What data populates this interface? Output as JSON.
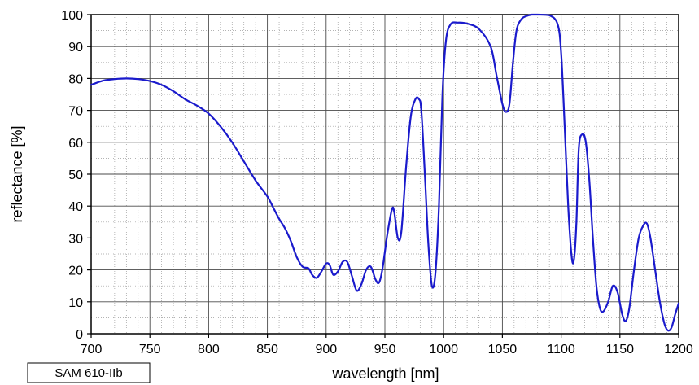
{
  "chart_data": {
    "type": "line",
    "title": "",
    "xlabel": "wavelength [nm]",
    "ylabel": "reflectance [%]",
    "xlim": [
      700,
      1200
    ],
    "ylim": [
      0,
      100
    ],
    "x_ticks": [
      700,
      750,
      800,
      850,
      900,
      950,
      1000,
      1050,
      1100,
      1150,
      1200
    ],
    "y_ticks": [
      0,
      10,
      20,
      30,
      40,
      50,
      60,
      70,
      80,
      90,
      100
    ],
    "grid": true,
    "minor_grid": true,
    "line_color": "#1a1acc",
    "series": [
      {
        "x": [
          700,
          710,
          720,
          730,
          740,
          750,
          760,
          770,
          780,
          790,
          800,
          810,
          820,
          830,
          840,
          850,
          855,
          860,
          865,
          870,
          875,
          880,
          885,
          888,
          892,
          896,
          900,
          903,
          906,
          910,
          914,
          918,
          922,
          926,
          930,
          934,
          938,
          942,
          945,
          948,
          952,
          956,
          958,
          961,
          964,
          968,
          972,
          976,
          979,
          981,
          984,
          987,
          990,
          993,
          996,
          999,
          1002,
          1006,
          1012,
          1020,
          1030,
          1040,
          1045,
          1050,
          1053,
          1056,
          1059,
          1062,
          1066,
          1070,
          1075,
          1080,
          1090,
          1097,
          1100,
          1103,
          1106,
          1109,
          1111,
          1113,
          1115,
          1118,
          1121,
          1124,
          1127,
          1130,
          1133,
          1136,
          1140,
          1144,
          1148,
          1152,
          1155,
          1158,
          1162,
          1166,
          1170,
          1173,
          1176,
          1180,
          1184,
          1188,
          1191,
          1194,
          1197,
          1200
        ],
        "values": [
          78,
          79.3,
          79.8,
          80,
          79.8,
          79.2,
          78,
          76,
          73.5,
          71.5,
          69,
          65,
          60,
          54,
          48,
          43,
          39.5,
          36,
          33,
          29,
          24,
          21,
          20.5,
          18.5,
          17.5,
          19.5,
          22,
          21.5,
          18.5,
          19.5,
          22.5,
          22.5,
          18,
          13.5,
          15.5,
          20,
          21,
          17,
          16,
          20.5,
          31,
          39,
          38,
          30,
          32,
          52,
          68,
          73.5,
          73.5,
          70,
          50,
          28,
          15,
          19,
          40,
          75,
          92,
          97,
          97.5,
          97.2,
          95.5,
          90,
          81,
          72,
          69.5,
          72,
          85,
          95,
          98.5,
          99.5,
          100,
          100,
          99.8,
          97,
          88,
          65,
          40,
          24,
          23.5,
          35,
          58,
          62.5,
          60,
          48,
          30,
          15,
          8,
          7,
          10,
          15,
          13,
          6,
          4,
          8,
          20,
          30,
          34,
          34.5,
          30,
          20,
          10,
          3,
          1,
          2,
          6,
          9.5
        ]
      }
    ]
  },
  "sample_label": "SAM 610-IIb"
}
